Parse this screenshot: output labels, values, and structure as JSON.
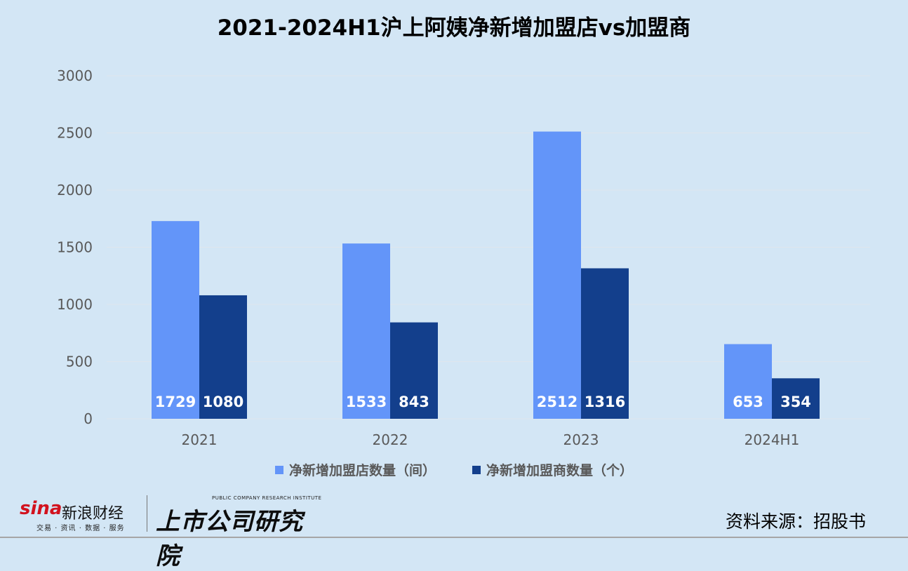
{
  "chart_data": {
    "type": "bar",
    "title": "2021-2024H1沪上阿姨净新增加盟店vs加盟商",
    "categories": [
      "2021",
      "2022",
      "2023",
      "2024H1"
    ],
    "series": [
      {
        "name": "净新增加盟店数量（间）",
        "values": [
          1729,
          1533,
          2512,
          653
        ],
        "color": "#6395f9"
      },
      {
        "name": "净新增加盟商数量（个）",
        "values": [
          1080,
          843,
          1316,
          354
        ],
        "color": "#133f8c"
      }
    ],
    "ylim": [
      0,
      3000
    ],
    "yticks": [
      0,
      500,
      1000,
      1500,
      2000,
      2500,
      3000
    ],
    "xlabel": "",
    "ylabel": "",
    "grid": true,
    "legend": "bottom"
  },
  "footer": {
    "source": "资料来源：招股书",
    "brand_sina": "sina",
    "brand_sina_cn": "新浪财经",
    "brand_sina_sub": "交易 · 资讯 · 数据 · 服务",
    "brand_inst_en": "PUBLIC COMPANY RESEARCH INSTITUTE",
    "brand_inst_cn": "上市公司研究院"
  },
  "colors": {
    "background": "#d3e6f5",
    "gridline": "#dfe6ed",
    "axis_text": "#595959"
  }
}
